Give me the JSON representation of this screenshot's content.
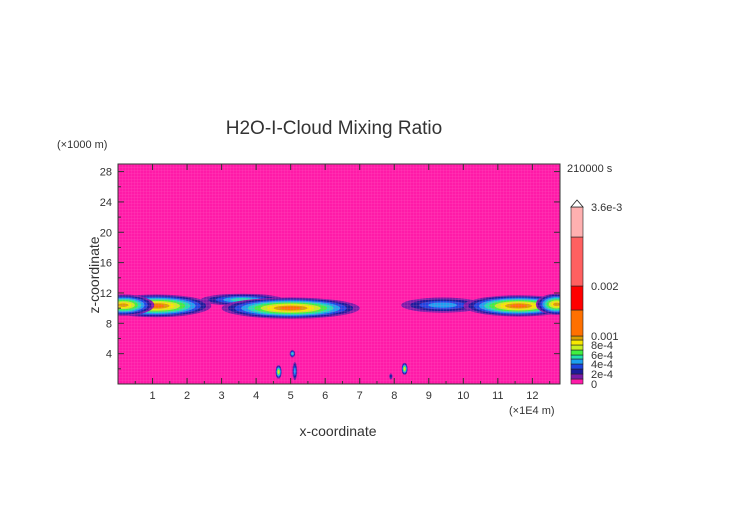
{
  "chart_data": {
    "type": "heatmap",
    "title": "H2O-I-Cloud Mixing Ratio",
    "xlabel": "x-coordinate",
    "ylabel": "z-coordinate",
    "x_unit": "(×1E4 m)",
    "y_unit": "(×1000 m)",
    "time_label": "210000 s",
    "xlim": [
      0,
      12.8
    ],
    "ylim": [
      0,
      29
    ],
    "x_ticks": [
      "1",
      "2",
      "3",
      "4",
      "5",
      "6",
      "7",
      "8",
      "9",
      "10",
      "11",
      "12"
    ],
    "y_ticks": [
      "4",
      "8",
      "12",
      "16",
      "20",
      "24",
      "28"
    ],
    "background_color": "#ff1aa8",
    "colorbar": {
      "levels": [
        0,
        0.0001,
        0.0002,
        0.0003,
        0.0004,
        0.0005,
        0.0006,
        0.0007,
        0.0008,
        0.0009,
        0.001,
        0.0015,
        0.002,
        0.003,
        0.0036
      ],
      "colors": [
        "#ff1aa8",
        "#7a1aa8",
        "#1c1c9c",
        "#1e44e0",
        "#1ca0f0",
        "#20e0b0",
        "#40f040",
        "#c8f020",
        "#f8e800",
        "#d8a000",
        "#ff7000",
        "#ff0000",
        "#ff6060",
        "#ffb0b0"
      ],
      "tick_labels": [
        {
          "value": 0.0036,
          "label": "3.6e-3"
        },
        {
          "value": 0.002,
          "label": "0.002"
        },
        {
          "value": 0.001,
          "label": "0.001"
        },
        {
          "value": 0.0008,
          "label": "8e-4"
        },
        {
          "value": 0.0006,
          "label": "6e-4"
        },
        {
          "value": 0.0004,
          "label": "4e-4"
        },
        {
          "value": 0.0002,
          "label": "2e-4"
        },
        {
          "value": 0,
          "label": "0"
        }
      ]
    },
    "cloud_features": [
      {
        "x": 1.1,
        "z": 10.3,
        "rx": 1.6,
        "rz": 1.5,
        "peak_level": 10
      },
      {
        "x": 0.15,
        "z": 10.4,
        "rx": 0.9,
        "rz": 1.4,
        "peak_level": 9
      },
      {
        "x": 3.6,
        "z": 11.1,
        "rx": 1.2,
        "rz": 0.8,
        "peak_level": 5
      },
      {
        "x": 5.0,
        "z": 10.0,
        "rx": 2.0,
        "rz": 1.4,
        "peak_level": 10
      },
      {
        "x": 9.4,
        "z": 10.4,
        "rx": 1.2,
        "rz": 1.0,
        "peak_level": 4
      },
      {
        "x": 11.6,
        "z": 10.3,
        "rx": 1.6,
        "rz": 1.4,
        "peak_level": 10
      },
      {
        "x": 12.7,
        "z": 10.5,
        "rx": 0.6,
        "rz": 1.4,
        "peak_level": 9
      },
      {
        "x": 4.65,
        "z": 1.6,
        "rx": 0.09,
        "rz": 0.9,
        "peak_level": 8
      },
      {
        "x": 5.05,
        "z": 4.0,
        "rx": 0.08,
        "rz": 0.5,
        "peak_level": 5
      },
      {
        "x": 5.12,
        "z": 1.7,
        "rx": 0.07,
        "rz": 1.2,
        "peak_level": 4
      },
      {
        "x": 8.3,
        "z": 2.0,
        "rx": 0.09,
        "rz": 0.8,
        "peak_level": 8
      },
      {
        "x": 7.9,
        "z": 1.0,
        "rx": 0.05,
        "rz": 0.4,
        "peak_level": 2
      }
    ]
  }
}
